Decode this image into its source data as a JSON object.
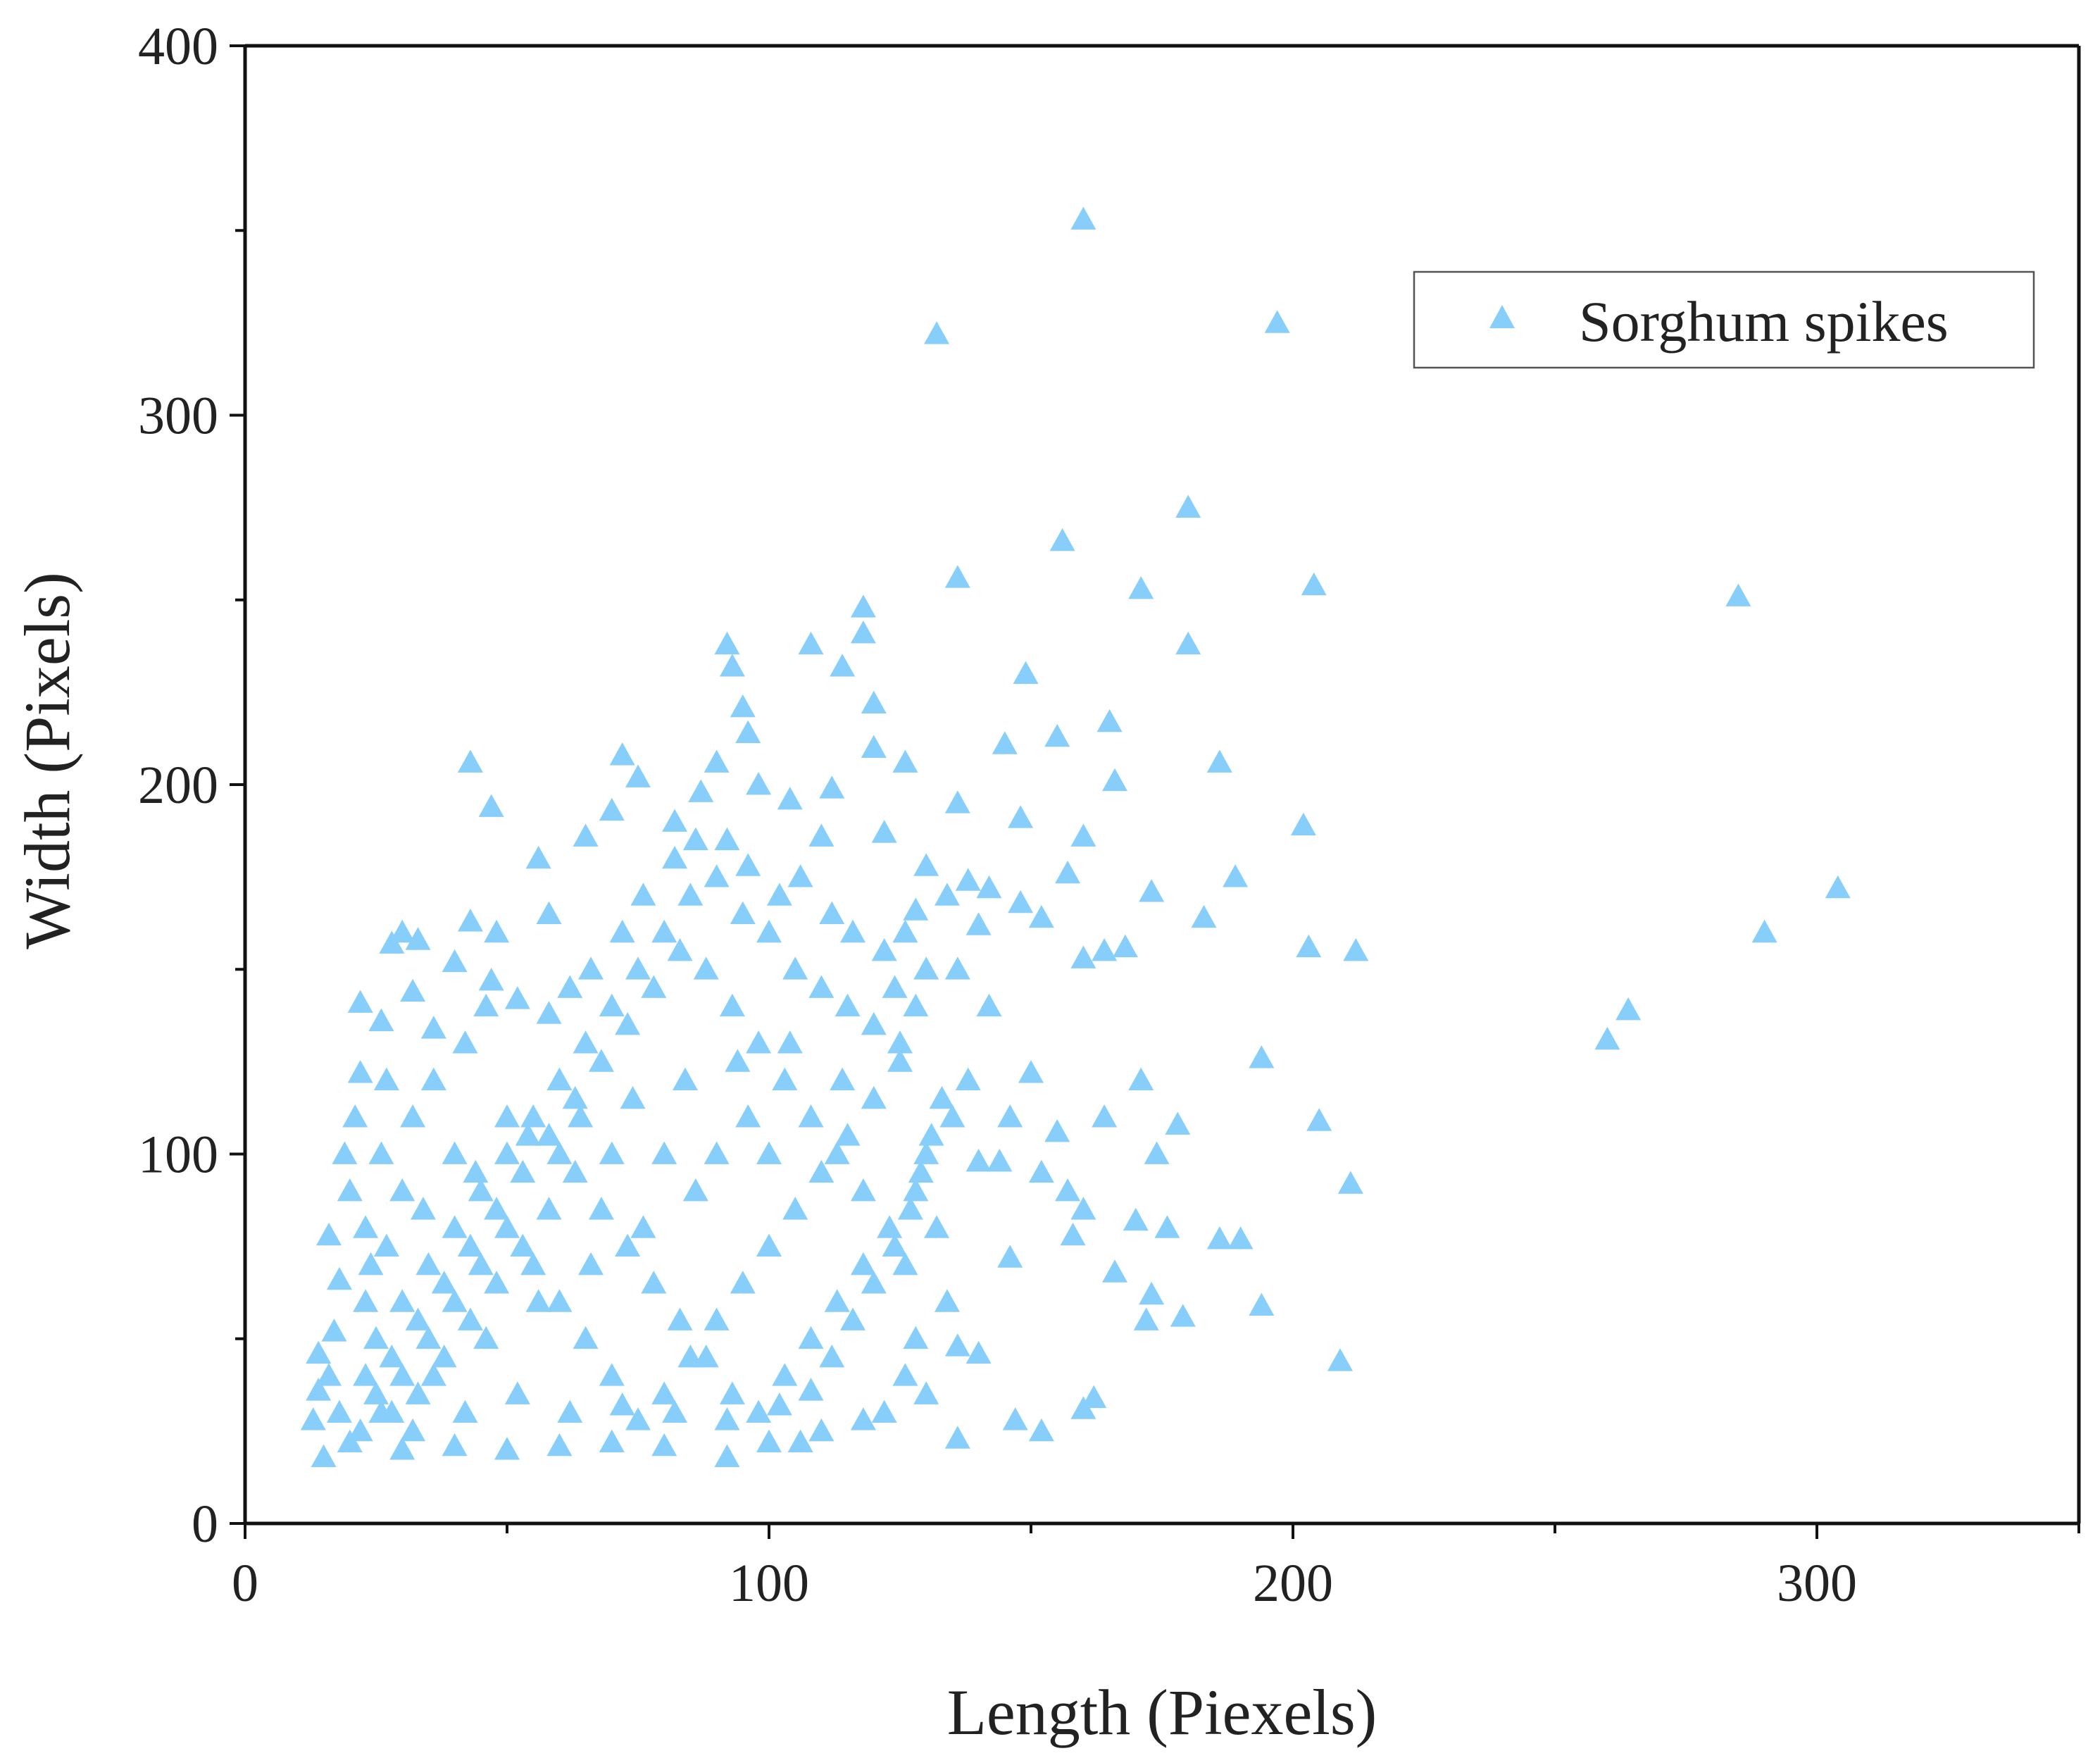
{
  "chart_data": {
    "type": "scatter",
    "xlabel": "Length (Piexels)",
    "ylabel": "Width (Pixels)",
    "xlim": [
      0,
      350
    ],
    "ylim": [
      0,
      400
    ],
    "xticks": [
      0,
      100,
      200,
      300
    ],
    "yticks": [
      0,
      100,
      200,
      300,
      400
    ],
    "grid": false,
    "legend_position": "top-right",
    "marker": "triangle-up",
    "color": "#87CEFA",
    "series": [
      {
        "name": "Sorghum spikes",
        "points": [
          [
            160,
            353
          ],
          [
            132,
            322
          ],
          [
            197,
            325
          ],
          [
            180,
            275
          ],
          [
            156,
            266
          ],
          [
            136,
            256
          ],
          [
            171,
            253
          ],
          [
            204,
            254
          ],
          [
            285,
            251
          ],
          [
            180,
            238
          ],
          [
            149,
            230
          ],
          [
            43,
            206
          ],
          [
            47,
            194
          ],
          [
            186,
            206
          ],
          [
            166,
            201
          ],
          [
            202,
            189
          ],
          [
            189,
            175
          ],
          [
            173,
            171
          ],
          [
            183,
            164
          ],
          [
            304,
            172
          ],
          [
            290,
            160
          ],
          [
            203,
            156
          ],
          [
            212,
            155
          ],
          [
            164,
            155
          ],
          [
            160,
            153
          ],
          [
            264,
            139
          ],
          [
            260,
            131
          ],
          [
            194,
            126
          ],
          [
            205,
            109
          ],
          [
            211,
            92
          ],
          [
            186,
            77
          ],
          [
            190,
            77
          ],
          [
            194,
            59
          ],
          [
            209,
            44
          ],
          [
            179,
            56
          ],
          [
            172,
            55
          ],
          [
            173,
            62
          ],
          [
            162,
            34
          ],
          [
            160,
            31
          ],
          [
            136,
            23
          ],
          [
            152,
            25
          ],
          [
            147,
            28
          ],
          [
            157,
            90
          ],
          [
            160,
            85
          ],
          [
            170,
            82
          ],
          [
            176,
            80
          ],
          [
            164,
            110
          ],
          [
            171,
            120
          ],
          [
            178,
            108
          ],
          [
            174,
            100
          ],
          [
            150,
            122
          ],
          [
            146,
            110
          ],
          [
            155,
            106
          ],
          [
            152,
            95
          ],
          [
            158,
            78
          ],
          [
            166,
            68
          ],
          [
            146,
            72
          ],
          [
            140,
            98
          ],
          [
            144,
            98
          ],
          [
            155,
            213
          ],
          [
            165,
            217
          ],
          [
            145,
            211
          ],
          [
            148,
            191
          ],
          [
            160,
            186
          ],
          [
            157,
            176
          ],
          [
            138,
            174
          ],
          [
            142,
            172
          ],
          [
            148,
            168
          ],
          [
            152,
            164
          ],
          [
            168,
            156
          ],
          [
            136,
            195
          ],
          [
            118,
            248
          ],
          [
            118,
            241
          ],
          [
            108,
            238
          ],
          [
            114,
            232
          ],
          [
            120,
            222
          ],
          [
            92,
            238
          ],
          [
            93,
            232
          ],
          [
            95,
            221
          ],
          [
            96,
            214
          ],
          [
            72,
            208
          ],
          [
            75,
            202
          ],
          [
            90,
            206
          ],
          [
            98,
            200
          ],
          [
            104,
            196
          ],
          [
            112,
            199
          ],
          [
            120,
            210
          ],
          [
            126,
            206
          ],
          [
            122,
            187
          ],
          [
            110,
            186
          ],
          [
            87,
            198
          ],
          [
            82,
            190
          ],
          [
            70,
            193
          ],
          [
            65,
            186
          ],
          [
            56,
            180
          ],
          [
            58,
            165
          ],
          [
            43,
            163
          ],
          [
            48,
            160
          ],
          [
            30,
            160
          ],
          [
            33,
            158
          ],
          [
            28,
            157
          ],
          [
            40,
            152
          ],
          [
            47,
            147
          ],
          [
            22,
            141
          ],
          [
            26,
            136
          ],
          [
            36,
            134
          ],
          [
            32,
            144
          ],
          [
            130,
            178
          ],
          [
            134,
            170
          ],
          [
            128,
            166
          ],
          [
            140,
            162
          ],
          [
            136,
            150
          ],
          [
            142,
            140
          ],
          [
            130,
            150
          ],
          [
            125,
            130
          ],
          [
            138,
            120
          ],
          [
            135,
            110
          ],
          [
            130,
            100
          ],
          [
            128,
            90
          ],
          [
            132,
            80
          ],
          [
            126,
            70
          ],
          [
            134,
            60
          ],
          [
            128,
            50
          ],
          [
            136,
            48
          ],
          [
            140,
            46
          ],
          [
            126,
            40
          ],
          [
            130,
            35
          ],
          [
            122,
            30
          ],
          [
            118,
            28
          ],
          [
            110,
            25
          ],
          [
            106,
            22
          ],
          [
            15,
            18
          ],
          [
            20,
            22
          ],
          [
            18,
            30
          ],
          [
            16,
            40
          ],
          [
            17,
            52
          ],
          [
            18,
            66
          ],
          [
            16,
            78
          ],
          [
            20,
            90
          ],
          [
            19,
            100
          ],
          [
            21,
            110
          ],
          [
            22,
            122
          ],
          [
            14,
            36
          ],
          [
            14,
            46
          ],
          [
            13,
            28
          ],
          [
            30,
            20
          ],
          [
            40,
            21
          ],
          [
            50,
            20
          ],
          [
            60,
            21
          ],
          [
            70,
            22
          ],
          [
            80,
            21
          ],
          [
            92,
            18
          ],
          [
            100,
            22
          ],
          [
            25,
            50
          ],
          [
            30,
            60
          ],
          [
            35,
            70
          ],
          [
            40,
            80
          ],
          [
            45,
            90
          ],
          [
            50,
            100
          ],
          [
            55,
            110
          ],
          [
            60,
            120
          ],
          [
            65,
            130
          ],
          [
            70,
            140
          ],
          [
            75,
            150
          ],
          [
            80,
            160
          ],
          [
            85,
            170
          ],
          [
            90,
            175
          ],
          [
            95,
            165
          ],
          [
            100,
            160
          ],
          [
            105,
            150
          ],
          [
            110,
            145
          ],
          [
            115,
            140
          ],
          [
            120,
            135
          ],
          [
            125,
            125
          ],
          [
            120,
            115
          ],
          [
            115,
            105
          ],
          [
            110,
            95
          ],
          [
            105,
            85
          ],
          [
            100,
            75
          ],
          [
            95,
            65
          ],
          [
            90,
            55
          ],
          [
            85,
            45
          ],
          [
            80,
            35
          ],
          [
            75,
            28
          ],
          [
            70,
            40
          ],
          [
            65,
            50
          ],
          [
            60,
            60
          ],
          [
            55,
            70
          ],
          [
            50,
            80
          ],
          [
            45,
            70
          ],
          [
            40,
            60
          ],
          [
            35,
            50
          ],
          [
            30,
            40
          ],
          [
            25,
            35
          ],
          [
            28,
            45
          ],
          [
            33,
            55
          ],
          [
            38,
            65
          ],
          [
            43,
            75
          ],
          [
            48,
            85
          ],
          [
            53,
            95
          ],
          [
            58,
            105
          ],
          [
            63,
            115
          ],
          [
            68,
            125
          ],
          [
            73,
            135
          ],
          [
            78,
            145
          ],
          [
            83,
            155
          ],
          [
            88,
            150
          ],
          [
            93,
            140
          ],
          [
            98,
            130
          ],
          [
            103,
            120
          ],
          [
            108,
            110
          ],
          [
            113,
            100
          ],
          [
            118,
            90
          ],
          [
            123,
            80
          ],
          [
            118,
            70
          ],
          [
            113,
            60
          ],
          [
            108,
            50
          ],
          [
            103,
            40
          ],
          [
            98,
            30
          ],
          [
            93,
            35
          ],
          [
            88,
            45
          ],
          [
            83,
            55
          ],
          [
            78,
            65
          ],
          [
            73,
            75
          ],
          [
            68,
            85
          ],
          [
            63,
            95
          ],
          [
            58,
            85
          ],
          [
            53,
            75
          ],
          [
            48,
            65
          ],
          [
            43,
            55
          ],
          [
            38,
            45
          ],
          [
            33,
            35
          ],
          [
            28,
            30
          ],
          [
            23,
            40
          ],
          [
            23,
            60
          ],
          [
            23,
            80
          ],
          [
            26,
            100
          ],
          [
            27,
            120
          ],
          [
            32,
            110
          ],
          [
            36,
            120
          ],
          [
            42,
            130
          ],
          [
            46,
            140
          ],
          [
            52,
            142
          ],
          [
            58,
            138
          ],
          [
            62,
            145
          ],
          [
            66,
            150
          ],
          [
            72,
            160
          ],
          [
            76,
            170
          ],
          [
            82,
            180
          ],
          [
            86,
            185
          ],
          [
            92,
            185
          ],
          [
            96,
            178
          ],
          [
            102,
            170
          ],
          [
            106,
            175
          ],
          [
            112,
            165
          ],
          [
            116,
            160
          ],
          [
            122,
            155
          ],
          [
            124,
            145
          ],
          [
            100,
            100
          ],
          [
            90,
            100
          ],
          [
            80,
            100
          ],
          [
            70,
            100
          ],
          [
            60,
            100
          ],
          [
            50,
            110
          ],
          [
            40,
            100
          ],
          [
            30,
            90
          ],
          [
            24,
            70
          ],
          [
            27,
            75
          ],
          [
            34,
            85
          ],
          [
            44,
            95
          ],
          [
            54,
            105
          ],
          [
            64,
            110
          ],
          [
            74,
            115
          ],
          [
            84,
            120
          ],
          [
            94,
            125
          ],
          [
            104,
            130
          ],
          [
            114,
            120
          ],
          [
            96,
            110
          ],
          [
            86,
            90
          ],
          [
            76,
            80
          ],
          [
            66,
            70
          ],
          [
            56,
            60
          ],
          [
            46,
            50
          ],
          [
            36,
            40
          ],
          [
            26,
            30
          ],
          [
            22,
            25
          ],
          [
            32,
            25
          ],
          [
            42,
            30
          ],
          [
            52,
            35
          ],
          [
            62,
            30
          ],
          [
            72,
            32
          ],
          [
            82,
            30
          ],
          [
            92,
            28
          ],
          [
            102,
            32
          ],
          [
            108,
            36
          ],
          [
            112,
            45
          ],
          [
            116,
            55
          ],
          [
            120,
            65
          ],
          [
            124,
            75
          ],
          [
            127,
            85
          ],
          [
            129,
            95
          ],
          [
            131,
            105
          ],
          [
            133,
            115
          ],
          [
            126,
            160
          ],
          [
            128,
            140
          ]
        ]
      }
    ]
  }
}
